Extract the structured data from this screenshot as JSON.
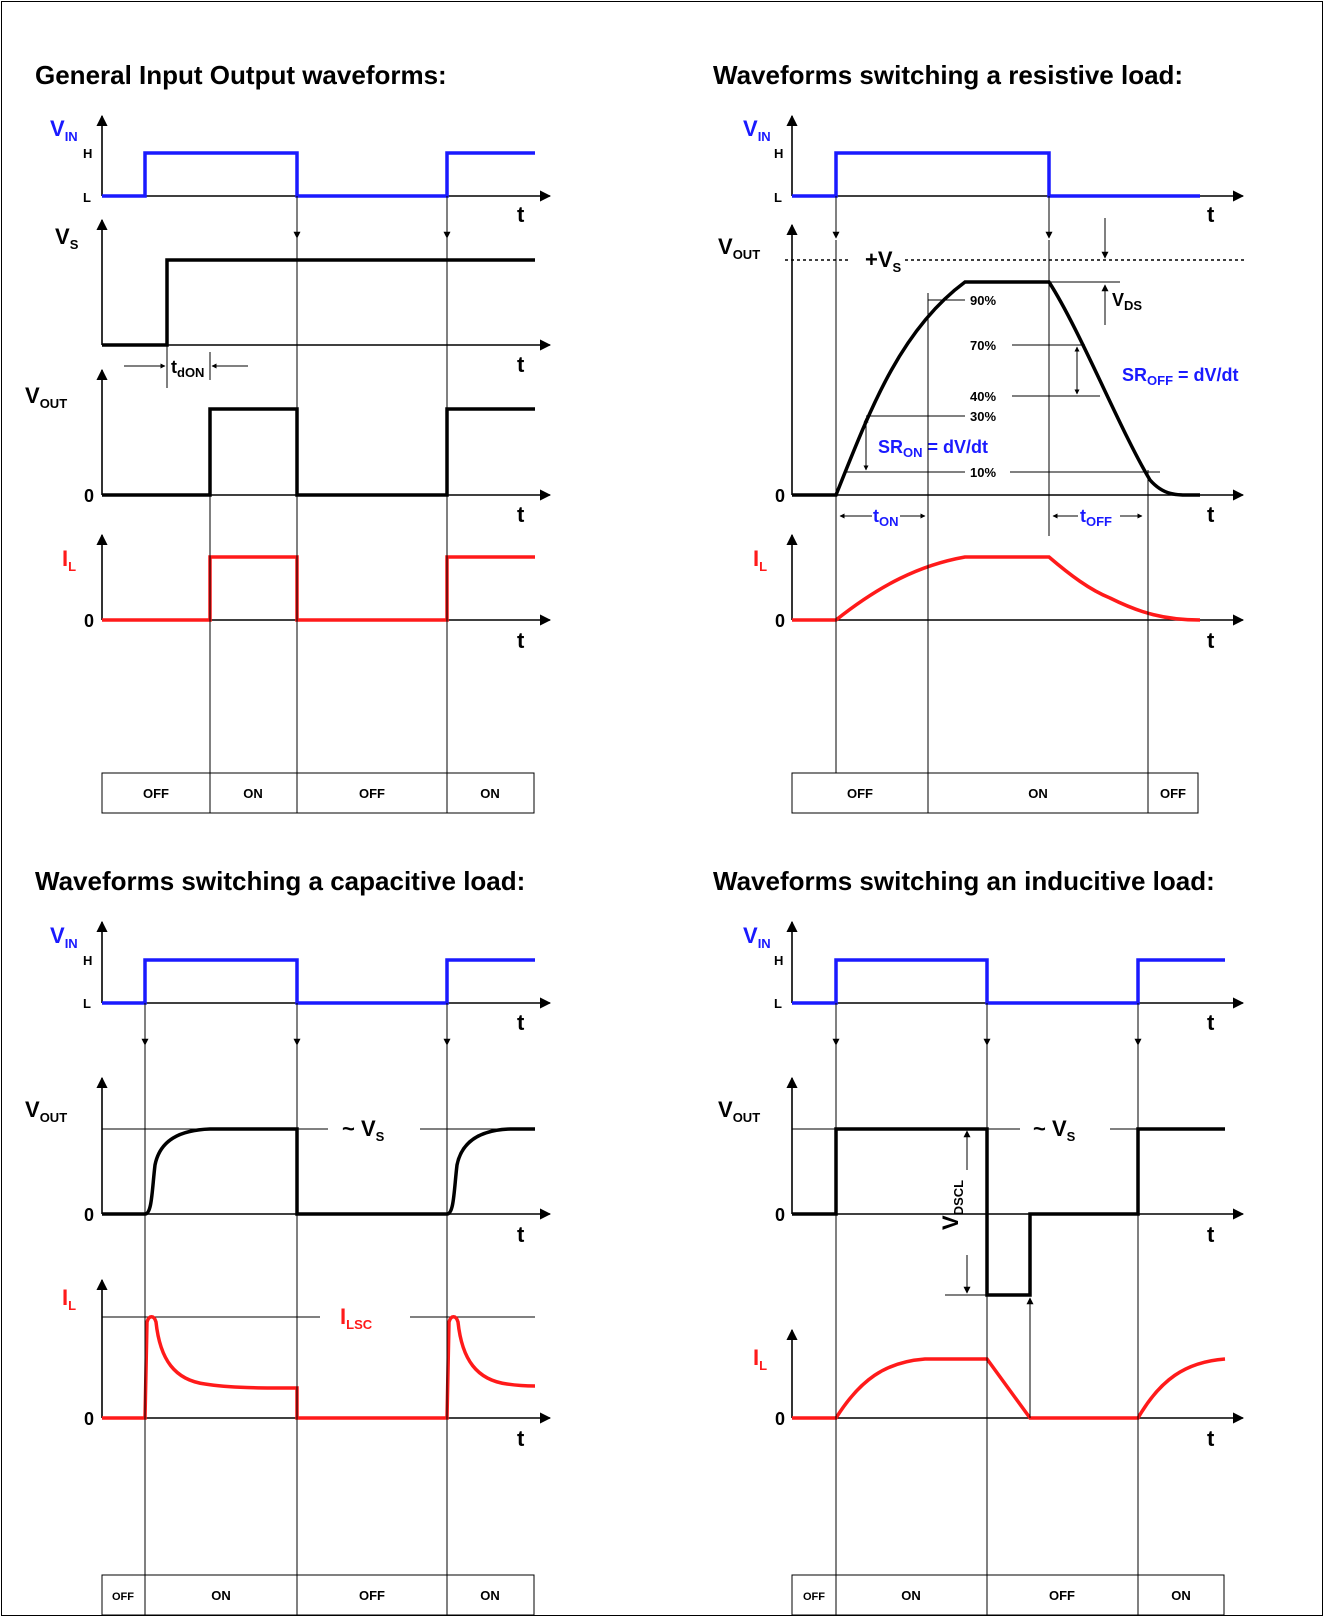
{
  "titles": {
    "general": "General Input Output waveforms:",
    "resistive": "Waveforms switching a resistive load:",
    "capacitive": "Waveforms switching a capacitive load:",
    "inductive": "Waveforms switching an inducitive load:"
  },
  "labels": {
    "v": "V",
    "in_sub": "IN",
    "s_sub": "S",
    "out_sub": "OUT",
    "i": "I",
    "l_sub": "L",
    "h": "H",
    "l": "L",
    "t": "t",
    "zero": "0",
    "t_don": "t",
    "t_don_sub": "dON",
    "plus_vs": "+V",
    "vds_sub": "DS",
    "pct_90": "90%",
    "pct_70": "70%",
    "pct_40": "40%",
    "pct_30": "30%",
    "pct_10": "10%",
    "sr_on": "SR",
    "sr_on_sub": "ON",
    "sr_eq": "= dV/dt",
    "sr_off_sub": "OFF",
    "t_on_sub": "ON",
    "t_off_sub": "OFF",
    "approx_vs": "~ V",
    "ilsc_sub": "LSC",
    "vdscl_sub": "DSCL"
  },
  "states": {
    "general": [
      "OFF",
      "ON",
      "OFF",
      "ON"
    ],
    "resistive": [
      "OFF",
      "ON",
      "OFF"
    ],
    "capacitive": [
      "OFF",
      "ON",
      "OFF",
      "ON"
    ],
    "inductive": [
      "OFF",
      "ON",
      "OFF",
      "ON"
    ]
  },
  "colors": {
    "input": "#1a1aff",
    "output_voltage": "#000000",
    "load_current": "#ff1a1a"
  }
}
